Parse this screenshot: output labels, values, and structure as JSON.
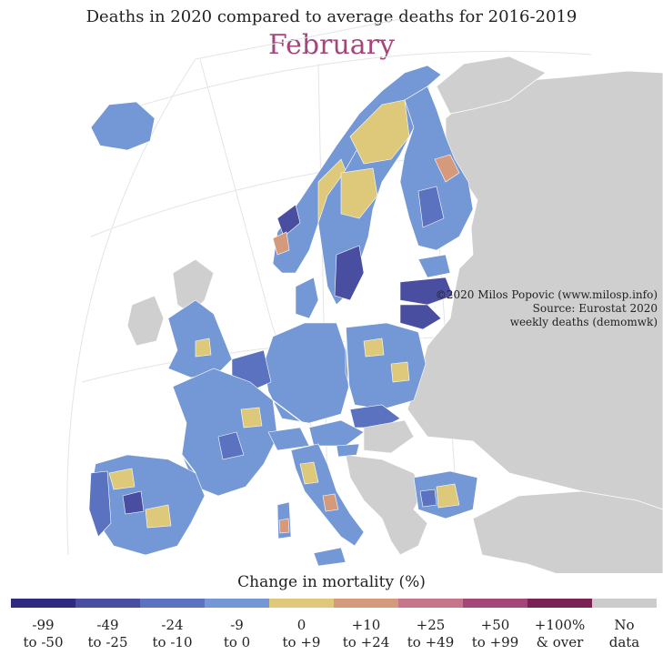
{
  "title": "Deaths in 2020 compared to average deaths for 2016-2019",
  "month": "February",
  "colors": {
    "month": "#a4467a",
    "background_land": "#cfcfcf",
    "graticule": "#e4e4e4",
    "water": "#ffffff",
    "borders": "#ffffff"
  },
  "credit": {
    "line1": "©2020 Milos Popovic (www.milosp.info)",
    "line2": "Source: Eurostat 2020",
    "line3": "weekly deaths (demomwk)"
  },
  "legend": {
    "title": "Change in mortality (%)",
    "items": [
      {
        "line1": "-99",
        "line2": "to -50",
        "color": "#2e2a7e"
      },
      {
        "line1": "-49",
        "line2": "to -25",
        "color": "#4a4ea0"
      },
      {
        "line1": "-24",
        "line2": "to -10",
        "color": "#5a72bf"
      },
      {
        "line1": "-9",
        "line2": "to 0",
        "color": "#7398d5"
      },
      {
        "line1": "0",
        "line2": "to +9",
        "color": "#dec97a"
      },
      {
        "line1": "+10",
        "line2": "to +24",
        "color": "#d59a7c"
      },
      {
        "line1": "+25",
        "line2": "to +49",
        "color": "#c7758a"
      },
      {
        "line1": "+50",
        "line2": "to +99",
        "color": "#a4467a"
      },
      {
        "line1": "+100%",
        "line2": "& over",
        "color": "#7a2255"
      },
      {
        "line1": "No",
        "line2": "data",
        "color": "#cccccc"
      }
    ]
  }
}
